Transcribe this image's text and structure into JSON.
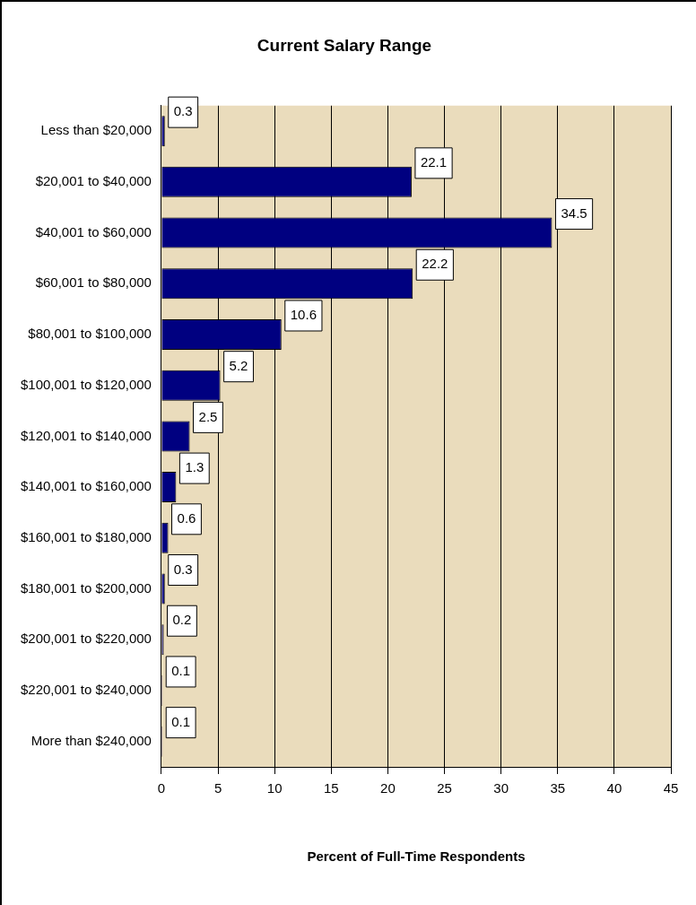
{
  "chart_data": {
    "type": "bar",
    "orientation": "horizontal",
    "title": "Current Salary Range",
    "xlabel": "Percent of Full-Time Respondents",
    "categories": [
      "Less than $20,000",
      "$20,001 to $40,000",
      "$40,001 to $60,000",
      "$60,001 to $80,000",
      "$80,001 to $100,000",
      "$100,001 to $120,000",
      "$120,001 to $140,000",
      "$140,001 to $160,000",
      "$160,001 to $180,000",
      "$180,001 to $200,000",
      "$200,001 to $220,000",
      "$220,001 to $240,000",
      "More than $240,000"
    ],
    "values": [
      0.3,
      22.1,
      34.5,
      22.2,
      10.6,
      5.2,
      2.5,
      1.3,
      0.6,
      0.3,
      0.2,
      0.1,
      0.1
    ],
    "color": "#000080",
    "xlim": [
      0,
      45
    ],
    "xticks": [
      0,
      5,
      10,
      15,
      20,
      25,
      30,
      35,
      40,
      45
    ],
    "grid": "x",
    "data_labels": true,
    "legend": false
  }
}
